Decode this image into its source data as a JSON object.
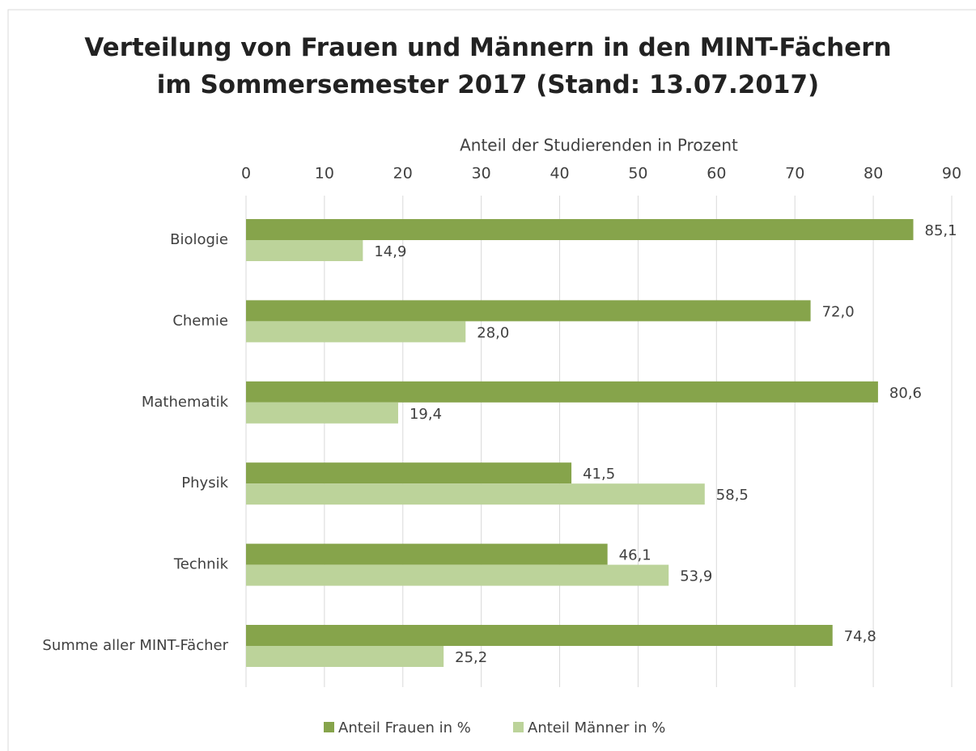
{
  "chart_data": {
    "type": "bar",
    "orientation": "horizontal",
    "title": "Verteilung von Frauen und Männern in den MINT-Fächern im Sommersemester 2017 (Stand: 13.07.2017)",
    "x_label": "Anteil der Studierenden in Prozent",
    "categories": [
      "Biologie",
      "Chemie",
      "Mathematik",
      "Physik",
      "Technik",
      "Summe aller MINT-Fächer"
    ],
    "series": [
      {
        "name": "Anteil Frauen in %",
        "color": "#86a44b",
        "values": [
          85.1,
          72.0,
          80.6,
          41.5,
          46.1,
          74.8
        ],
        "value_labels": [
          "85,1",
          "72,0",
          "80,6",
          "41,5",
          "46,1",
          "74,8"
        ]
      },
      {
        "name": "Anteil Männer in %",
        "color": "#bcd39a",
        "values": [
          14.9,
          28.0,
          19.4,
          58.5,
          53.9,
          25.2
        ],
        "value_labels": [
          "14,9",
          "28,0",
          "19,4",
          "58,5",
          "53,9",
          "25,2"
        ]
      }
    ],
    "xlim": [
      0,
      90
    ],
    "xticks": [
      0,
      10,
      20,
      30,
      40,
      50,
      60,
      70,
      80,
      90
    ],
    "grid": true,
    "legend": "bottom"
  }
}
